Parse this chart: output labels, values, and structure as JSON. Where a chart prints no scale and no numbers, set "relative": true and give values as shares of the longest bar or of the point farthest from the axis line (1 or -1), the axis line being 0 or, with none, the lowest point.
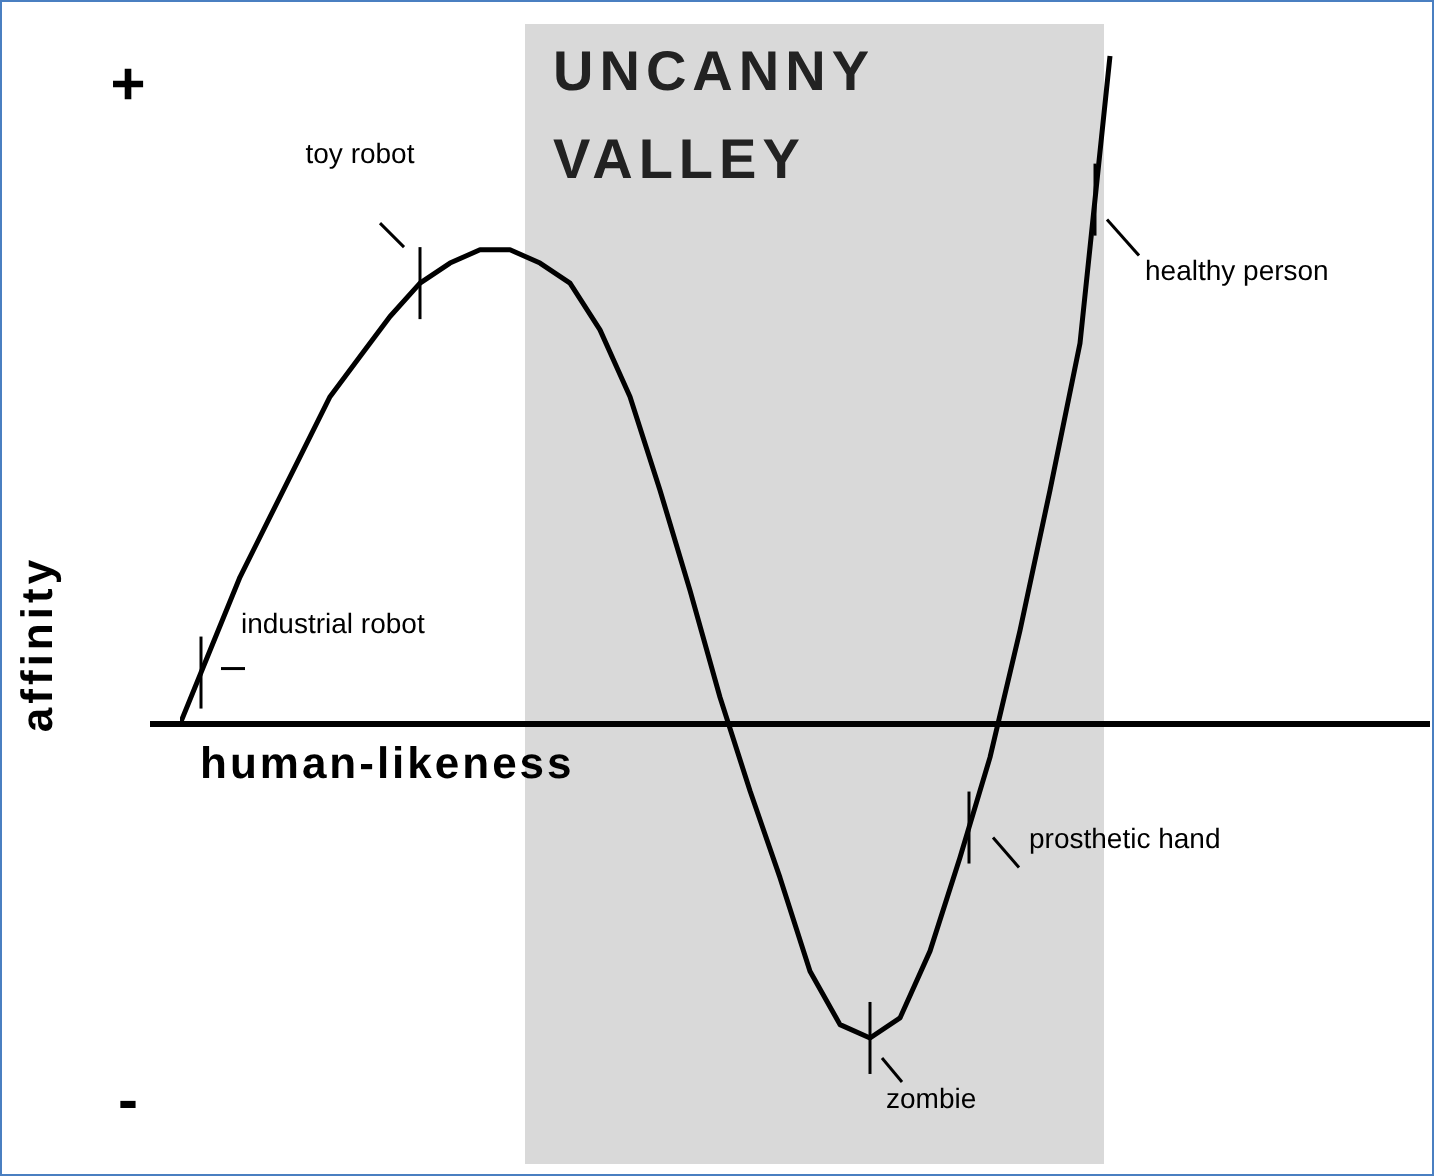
{
  "chart_data": {
    "type": "line",
    "relative": true,
    "xlabel": "human-likeness",
    "ylabel": "affinity",
    "categories": [
      null,
      null,
      null,
      null,
      null,
      null,
      null,
      null,
      null,
      null,
      null,
      null,
      null,
      null,
      null,
      null,
      null,
      null,
      null,
      null,
      null,
      null,
      null,
      null,
      null,
      null,
      null,
      null,
      null,
      null,
      null,
      null
    ],
    "series": [
      {
        "color": "#000000",
        "values": [
          0,
          0.11,
          0.22,
          0.31,
          0.4,
          0.49,
          0.55,
          0.61,
          0.66,
          0.69,
          0.71,
          0.71,
          0.69,
          0.66,
          0.59,
          0.49,
          0.35,
          0.2,
          0.04,
          -0.1,
          -0.23,
          -0.37,
          -0.45,
          -0.47,
          -0.44,
          -0.34,
          -0.2,
          -0.05,
          0.14,
          0.35,
          0.57,
          1
        ]
      }
    ],
    "annotations": [
      "+",
      "-",
      "UNCANNY VALLEY",
      "toy robot",
      "industrial robot",
      "zombie",
      "prosthetic hand",
      "healthy person"
    ]
  }
}
